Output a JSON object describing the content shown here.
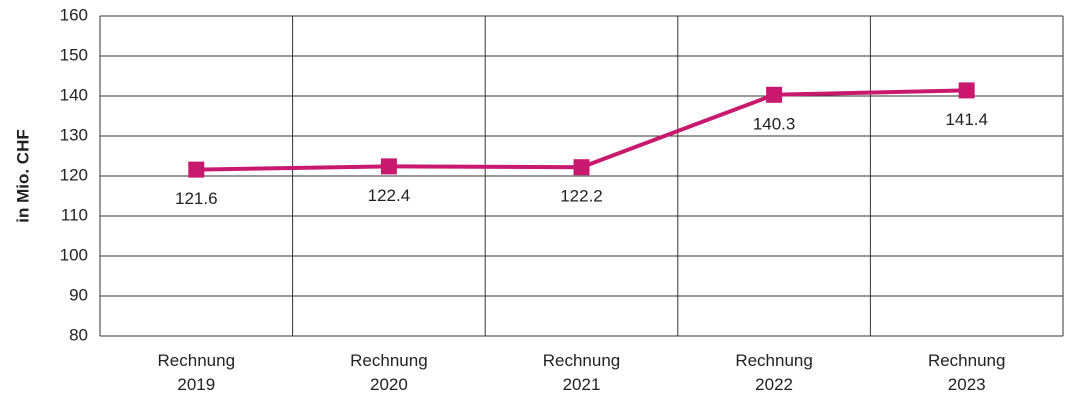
{
  "chart_data": {
    "type": "line",
    "y_label": "in Mio. CHF",
    "categories": [
      "Rechnung 2019",
      "Rechnung 2020",
      "Rechnung 2021",
      "Rechnung 2022",
      "Rechnung 2023"
    ],
    "values": [
      121.6,
      122.4,
      122.2,
      140.3,
      141.4
    ],
    "color": "#c8196e",
    "ylim": [
      80,
      160
    ],
    "yticks": [
      80,
      90,
      100,
      110,
      120,
      130,
      140,
      150,
      160
    ],
    "grid": true
  }
}
